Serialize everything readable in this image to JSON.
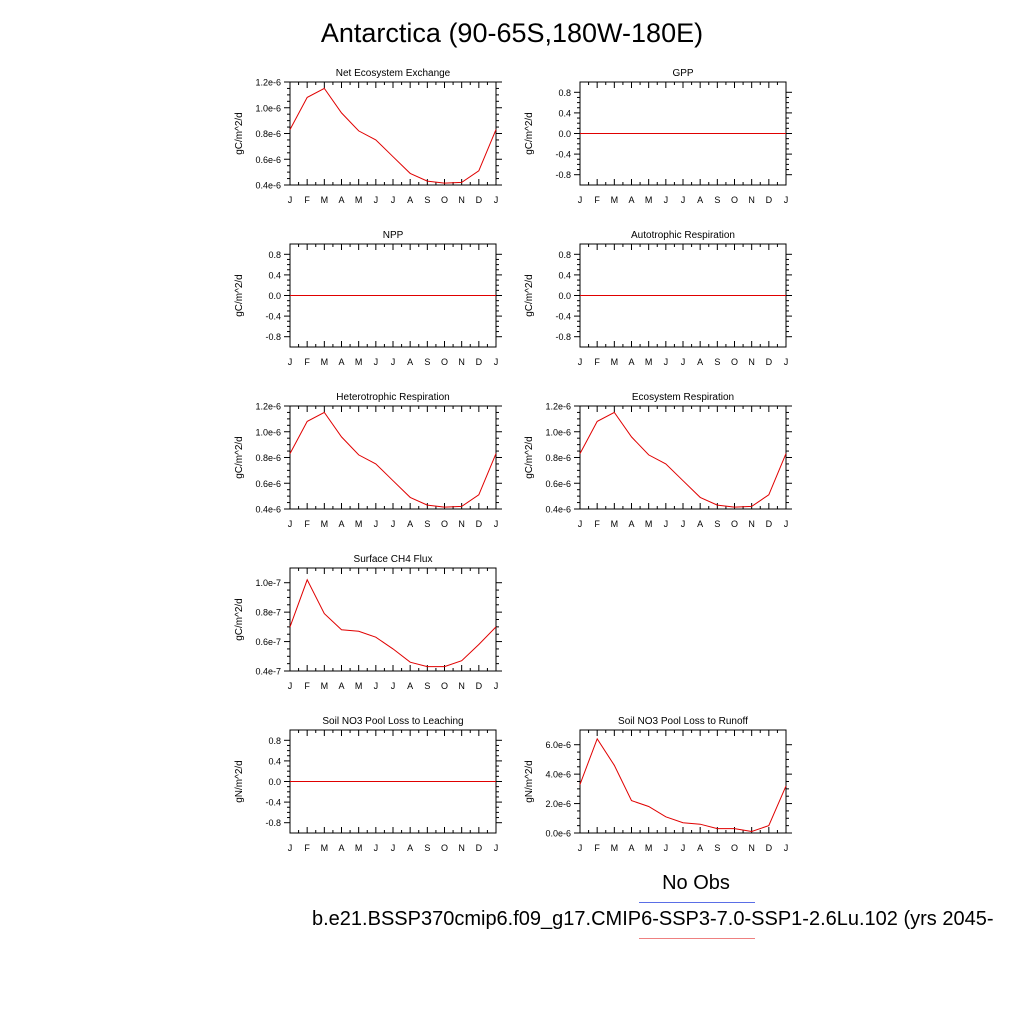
{
  "title": "Antarctica (90-65S,180W-180E)",
  "legend": {
    "obs_label": "No Obs",
    "case_label": "b.e21.BSSP370cmip6.f09_g17.CMIP6-SSP3-7.0-SSP1-2.6Lu.102 (yrs 2045-",
    "obs_color": "#5a6ee6",
    "case_color": "#ee8080"
  },
  "line_color": "#e00000",
  "chart_data": [
    {
      "type": "line",
      "title": "Net Ecosystem Exchange",
      "ylabel": "gC/m^2/d",
      "x": [
        "J",
        "F",
        "M",
        "A",
        "M",
        "J",
        "J",
        "A",
        "S",
        "O",
        "N",
        "D",
        "J"
      ],
      "ylim": [
        4e-07,
        1.2e-06
      ],
      "yticks": [
        4e-07,
        6e-07,
        8e-07,
        1e-06,
        1.2e-06
      ],
      "ytick_labels": [
        "0.4e-6",
        "0.6e-6",
        "0.8e-6",
        "1.0e-6",
        "1.2e-6"
      ],
      "series": [
        {
          "values": [
            8.3e-07,
            1.08e-06,
            1.15e-06,
            9.6e-07,
            8.2e-07,
            7.5e-07,
            6.2e-07,
            4.9e-07,
            4.3e-07,
            4.15e-07,
            4.2e-07,
            5.1e-07,
            8.3e-07
          ]
        }
      ]
    },
    {
      "type": "line",
      "title": "GPP",
      "ylabel": "gC/m^2/d",
      "x": [
        "J",
        "F",
        "M",
        "A",
        "M",
        "J",
        "J",
        "A",
        "S",
        "O",
        "N",
        "D",
        "J"
      ],
      "ylim": [
        -1,
        1
      ],
      "yticks": [
        -0.8,
        -0.4,
        0,
        0.4,
        0.8
      ],
      "ytick_labels": [
        "-0.8",
        "-0.4",
        "0.0",
        "0.4",
        "0.8"
      ],
      "series": [
        {
          "values": [
            0,
            0,
            0,
            0,
            0,
            0,
            0,
            0,
            0,
            0,
            0,
            0,
            0
          ]
        }
      ]
    },
    {
      "type": "line",
      "title": "NPP",
      "ylabel": "gC/m^2/d",
      "x": [
        "J",
        "F",
        "M",
        "A",
        "M",
        "J",
        "J",
        "A",
        "S",
        "O",
        "N",
        "D",
        "J"
      ],
      "ylim": [
        -1,
        1
      ],
      "yticks": [
        -0.8,
        -0.4,
        0,
        0.4,
        0.8
      ],
      "ytick_labels": [
        "-0.8",
        "-0.4",
        "0.0",
        "0.4",
        "0.8"
      ],
      "series": [
        {
          "values": [
            0,
            0,
            0,
            0,
            0,
            0,
            0,
            0,
            0,
            0,
            0,
            0,
            0
          ]
        }
      ]
    },
    {
      "type": "line",
      "title": "Autotrophic Respiration",
      "ylabel": "gC/m^2/d",
      "x": [
        "J",
        "F",
        "M",
        "A",
        "M",
        "J",
        "J",
        "A",
        "S",
        "O",
        "N",
        "D",
        "J"
      ],
      "ylim": [
        -1,
        1
      ],
      "yticks": [
        -0.8,
        -0.4,
        0,
        0.4,
        0.8
      ],
      "ytick_labels": [
        "-0.8",
        "-0.4",
        "0.0",
        "0.4",
        "0.8"
      ],
      "series": [
        {
          "values": [
            0,
            0,
            0,
            0,
            0,
            0,
            0,
            0,
            0,
            0,
            0,
            0,
            0
          ]
        }
      ]
    },
    {
      "type": "line",
      "title": "Heterotrophic Respiration",
      "ylabel": "gC/m^2/d",
      "x": [
        "J",
        "F",
        "M",
        "A",
        "M",
        "J",
        "J",
        "A",
        "S",
        "O",
        "N",
        "D",
        "J"
      ],
      "ylim": [
        4e-07,
        1.2e-06
      ],
      "yticks": [
        4e-07,
        6e-07,
        8e-07,
        1e-06,
        1.2e-06
      ],
      "ytick_labels": [
        "0.4e-6",
        "0.6e-6",
        "0.8e-6",
        "1.0e-6",
        "1.2e-6"
      ],
      "series": [
        {
          "values": [
            8.3e-07,
            1.08e-06,
            1.15e-06,
            9.6e-07,
            8.2e-07,
            7.5e-07,
            6.2e-07,
            4.9e-07,
            4.3e-07,
            4.15e-07,
            4.2e-07,
            5.1e-07,
            8.3e-07
          ]
        }
      ]
    },
    {
      "type": "line",
      "title": "Ecosystem Respiration",
      "ylabel": "gC/m^2/d",
      "x": [
        "J",
        "F",
        "M",
        "A",
        "M",
        "J",
        "J",
        "A",
        "S",
        "O",
        "N",
        "D",
        "J"
      ],
      "ylim": [
        4e-07,
        1.2e-06
      ],
      "yticks": [
        4e-07,
        6e-07,
        8e-07,
        1e-06,
        1.2e-06
      ],
      "ytick_labels": [
        "0.4e-6",
        "0.6e-6",
        "0.8e-6",
        "1.0e-6",
        "1.2e-6"
      ],
      "series": [
        {
          "values": [
            8.3e-07,
            1.08e-06,
            1.15e-06,
            9.6e-07,
            8.2e-07,
            7.5e-07,
            6.2e-07,
            4.9e-07,
            4.3e-07,
            4.15e-07,
            4.2e-07,
            5.1e-07,
            8.3e-07
          ]
        }
      ]
    },
    {
      "type": "line",
      "title": "Surface CH4 Flux",
      "ylabel": "gC/m^2/d",
      "x": [
        "J",
        "F",
        "M",
        "A",
        "M",
        "J",
        "J",
        "A",
        "S",
        "O",
        "N",
        "D",
        "J"
      ],
      "ylim": [
        4e-08,
        1.1e-07
      ],
      "yticks": [
        4e-08,
        6e-08,
        8e-08,
        1e-07
      ],
      "ytick_labels": [
        "0.4e-7",
        "0.6e-7",
        "0.8e-7",
        "1.0e-7"
      ],
      "series": [
        {
          "values": [
            7e-08,
            1.02e-07,
            7.9e-08,
            6.8e-08,
            6.7e-08,
            6.3e-08,
            5.5e-08,
            4.6e-08,
            4.3e-08,
            4.3e-08,
            4.7e-08,
            5.8e-08,
            7e-08
          ]
        }
      ]
    },
    {
      "type": "line",
      "title": "Soil NO3 Pool Loss to Leaching",
      "ylabel": "gN/m^2/d",
      "x": [
        "J",
        "F",
        "M",
        "A",
        "M",
        "J",
        "J",
        "A",
        "S",
        "O",
        "N",
        "D",
        "J"
      ],
      "ylim": [
        -1,
        1
      ],
      "yticks": [
        -0.8,
        -0.4,
        0,
        0.4,
        0.8
      ],
      "ytick_labels": [
        "-0.8",
        "-0.4",
        "0.0",
        "0.4",
        "0.8"
      ],
      "series": [
        {
          "values": [
            0,
            0,
            0,
            0,
            0,
            0,
            0,
            0,
            0,
            0,
            0,
            0,
            0
          ]
        }
      ]
    },
    {
      "type": "line",
      "title": "Soil NO3 Pool Loss to Runoff",
      "ylabel": "gN/m^2/d",
      "x": [
        "J",
        "F",
        "M",
        "A",
        "M",
        "J",
        "J",
        "A",
        "S",
        "O",
        "N",
        "D",
        "J"
      ],
      "ylim": [
        0,
        7e-06
      ],
      "yticks": [
        0,
        2e-06,
        4e-06,
        6e-06
      ],
      "ytick_labels": [
        "0.0e-6",
        "2.0e-6",
        "4.0e-6",
        "6.0e-6"
      ],
      "series": [
        {
          "values": [
            3.3e-06,
            6.4e-06,
            4.6e-06,
            2.2e-06,
            1.8e-06,
            1.1e-06,
            7e-07,
            6e-07,
            3e-07,
            3e-07,
            1e-07,
            5e-07,
            3.2e-06
          ]
        }
      ]
    }
  ]
}
